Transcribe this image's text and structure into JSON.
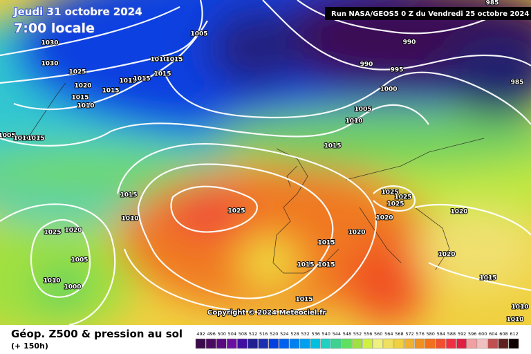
{
  "header": {
    "date": "Jeudi 31 octobre 2024",
    "time": "7:00 locale",
    "run": "Run NASA/GEOS5 0 Z du Vendredi 25 octobre 2024"
  },
  "map": {
    "isobar_labels": [
      "1030",
      "1030",
      "1025",
      "1020",
      "1015",
      "1010",
      "1015",
      "1015",
      "1015",
      "1015",
      "1010",
      "1015",
      "1005",
      "985",
      "990",
      "990",
      "995",
      "1000",
      "985",
      "1005",
      "1010",
      "1015",
      "1005",
      "1010",
      "1015",
      "1015",
      "1010",
      "1025",
      "1025",
      "1020",
      "1005",
      "1010",
      "1000",
      "1015",
      "1015",
      "1015",
      "1020",
      "1025",
      "1025",
      "1025",
      "1020",
      "1020",
      "1020",
      "1015",
      "1015",
      "1010",
      "1010"
    ],
    "copyright": "Copyright © 2024 Meteociel.fr"
  },
  "footer": {
    "title": "Géop. Z500 & pression au sol",
    "subtitle": "(+ 150h)"
  },
  "scale": {
    "levels": [
      "492",
      "496",
      "500",
      "504",
      "508",
      "512",
      "516",
      "520",
      "524",
      "528",
      "532",
      "536",
      "540",
      "544",
      "548",
      "552",
      "556",
      "560",
      "564",
      "568",
      "572",
      "576",
      "580",
      "584",
      "588",
      "592",
      "596",
      "600",
      "604",
      "608",
      "612"
    ],
    "colors": [
      "#3a0a4a",
      "#4a0a60",
      "#5a0a80",
      "#6a10a0",
      "#4010a0",
      "#202090",
      "#1a30b0",
      "#0040e0",
      "#0060f0",
      "#0080f0",
      "#00a0f0",
      "#00c0e0",
      "#20d0c0",
      "#40d090",
      "#60e060",
      "#a0e040",
      "#d0f040",
      "#f0f080",
      "#f0e060",
      "#f0d040",
      "#f0b030",
      "#f09020",
      "#f07020",
      "#f05030",
      "#f03040",
      "#e02040",
      "#f0a0a0",
      "#f0c0c0",
      "#c05050",
      "#602020",
      "#100000"
    ]
  }
}
